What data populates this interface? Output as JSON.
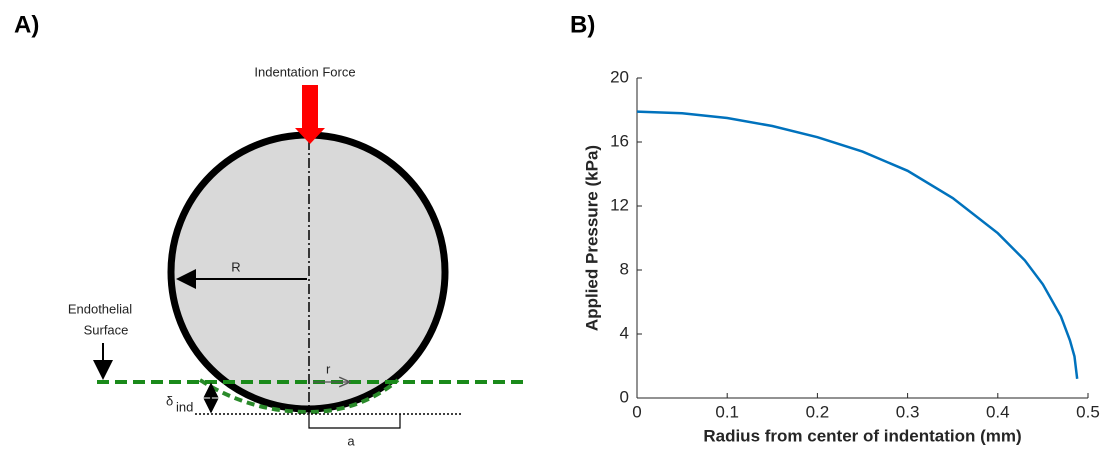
{
  "panel_a": {
    "label": "A)",
    "force_label": "Indentation Force",
    "radius_label": "R",
    "surface_label_line1": "Endothelial",
    "surface_label_line2": "Surface",
    "r_label": "r",
    "delta_label": "δ",
    "delta_subscript": "ind",
    "a_label": "a"
  },
  "chart_data": {
    "type": "line",
    "panel_label": "B)",
    "x_label": "Radius from center of indentation (mm)",
    "y_label": "Applied Pressure (kPa)",
    "x": [
      0,
      0.05,
      0.1,
      0.15,
      0.2,
      0.25,
      0.3,
      0.35,
      0.4,
      0.43,
      0.45,
      0.47,
      0.48,
      0.485,
      0.488
    ],
    "series": [
      {
        "color": "#0072bd",
        "values": [
          17.9,
          17.8,
          17.5,
          17.0,
          16.3,
          15.4,
          14.2,
          12.5,
          10.3,
          8.6,
          7.1,
          5.1,
          3.6,
          2.6,
          1.2
        ]
      }
    ],
    "xlim": [
      0,
      0.5
    ],
    "xticks": [
      0,
      0.1,
      0.2,
      0.3,
      0.4,
      0.5
    ],
    "ylim": [
      0,
      20
    ],
    "yticks": [
      0,
      4,
      8,
      12,
      16,
      20
    ],
    "grid": false
  }
}
